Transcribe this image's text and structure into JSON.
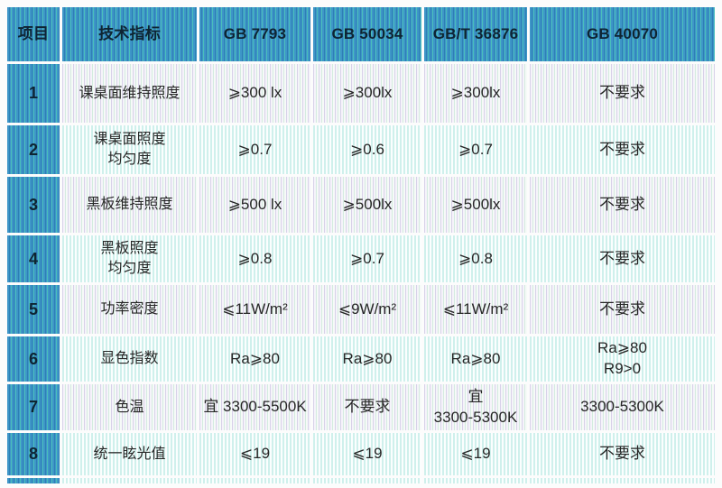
{
  "palette": {
    "header_blue": "#3e96c8",
    "header_stripe_teal": "#4abfba",
    "header_stripe_dark": "#2e7fb5",
    "row_stripe_cyan": "#cff0ec",
    "row_stripe_lavender": "#d8d1e9",
    "row_stripe_mint": "#d4ecdf",
    "text_dark": "#0e2433"
  },
  "table": {
    "columns": [
      "项目",
      "技术指标",
      "GB 7793",
      "GB 50034",
      "GB/T 36876",
      "GB 40070"
    ],
    "rows": [
      {
        "num": "1",
        "indicator": "课桌面维持照度",
        "gb7793": "⩾300 lx",
        "gb50034": "⩾300lx",
        "gbt36876": "⩾300lx",
        "gb40070": "不要求"
      },
      {
        "num": "2",
        "indicator": "课桌面照度\n均匀度",
        "gb7793": "⩾0.7",
        "gb50034": "⩾0.6",
        "gbt36876": "⩾0.7",
        "gb40070": "不要求"
      },
      {
        "num": "3",
        "indicator": "黑板维持照度",
        "gb7793": "⩾500 lx",
        "gb50034": "⩾500lx",
        "gbt36876": "⩾500lx",
        "gb40070": "不要求"
      },
      {
        "num": "4",
        "indicator": "黑板照度\n均匀度",
        "gb7793": "⩾0.8",
        "gb50034": "⩾0.7",
        "gbt36876": "⩾0.8",
        "gb40070": "不要求"
      },
      {
        "num": "5",
        "indicator": "功率密度",
        "gb7793": "⩽11W/m²",
        "gb50034": "⩽9W/m²",
        "gbt36876": "⩽11W/m²",
        "gb40070": "不要求"
      },
      {
        "num": "6",
        "indicator": "显色指数",
        "gb7793": "Ra⩾80",
        "gb50034": "Ra⩾80",
        "gbt36876": "Ra⩾80",
        "gb40070": "Ra⩾80\nR9>0"
      },
      {
        "num": "7",
        "indicator": "色温",
        "gb7793": "宜 3300-5500K",
        "gb50034": "不要求",
        "gbt36876": "宜\n3300-5300K",
        "gb40070": "3300-5300K"
      },
      {
        "num": "8",
        "indicator": "统一眩光值",
        "gb7793": "⩽19",
        "gb50034": "⩽19",
        "gbt36876": "⩽19",
        "gb40070": "不要求"
      }
    ]
  }
}
